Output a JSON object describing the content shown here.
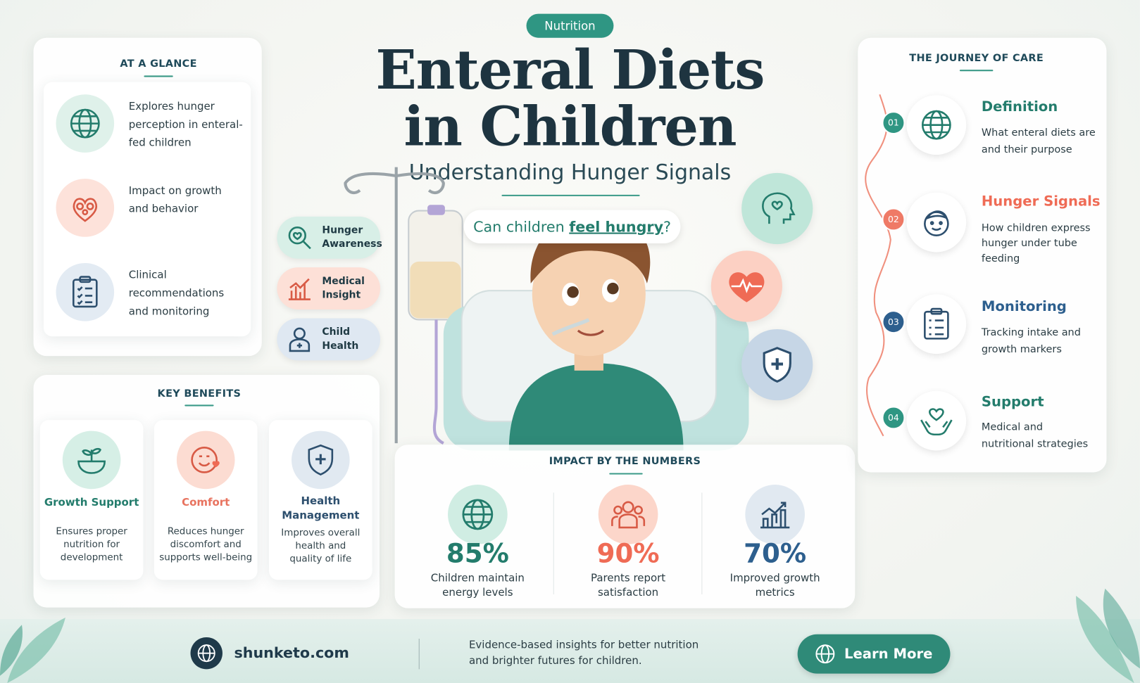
{
  "badge": "Nutrition",
  "title": {
    "lines": [
      "Enteral Diets",
      "in Children"
    ],
    "subtitle": "Understanding Hunger Signals"
  },
  "question": {
    "prefix": "Can children ",
    "emphasis": "feel hungry",
    "suffix": "?"
  },
  "at_a_glance": {
    "heading": "AT A GLANCE",
    "items": [
      "Explores hunger perception in enteral-fed children",
      "Impact on growth and behavior",
      "Clinical recommendations and monitoring"
    ]
  },
  "tags": [
    "Hunger Awareness",
    "Medical Insight",
    "Child Health"
  ],
  "key_benefits": {
    "heading": "KEY BENEFITS",
    "items": [
      {
        "title": "Growth Support",
        "text": "Ensures proper nutrition for development"
      },
      {
        "title": "Comfort",
        "text": "Reduces hunger discomfort and supports well-being"
      },
      {
        "title": "Health Management",
        "text": "Improves overall health and quality of life"
      }
    ]
  },
  "impact": {
    "heading": "IMPACT BY THE NUMBERS",
    "stats": [
      {
        "value": "85%",
        "label": "Children maintain energy levels"
      },
      {
        "value": "90%",
        "label": "Parents report satisfaction"
      },
      {
        "value": "70%",
        "label": "Improved growth metrics"
      }
    ]
  },
  "journey": {
    "heading": "THE JOURNEY OF CARE",
    "steps": [
      {
        "number": "01",
        "title": "Definition",
        "text": "What enteral diets are and their purpose"
      },
      {
        "number": "02",
        "title": "Hunger Signals",
        "text": "How children express hunger under tube feeding"
      },
      {
        "number": "03",
        "title": "Monitoring",
        "text": "Tracking intake and growth markers"
      },
      {
        "number": "04",
        "title": "Support",
        "text": "Medical and nutritional strategies"
      }
    ]
  },
  "footer": {
    "site": "shunketo.com",
    "tagline": "Evidence-based insights for better nutrition and brighter futures for children.",
    "button": "Learn More"
  }
}
